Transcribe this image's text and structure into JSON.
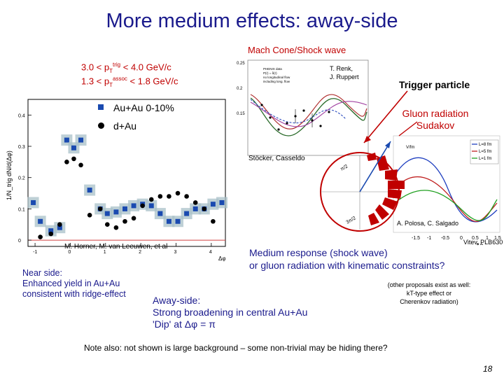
{
  "slide": {
    "title": "More medium effects: away-side",
    "page_number": "18"
  },
  "mach_cone": {
    "label": "Mach Cone/Shock wave",
    "authors": "T. Renk, J. Ruppert",
    "authors_line1": "T. Renk,",
    "authors_line2": "J. Ruppert",
    "legend": [
      "PHENIX data",
      "P(r) = δ(r)",
      "no longitudinal flow",
      "including long. flow"
    ],
    "y_ticks": [
      "0.25",
      "0.2",
      "0.15"
    ]
  },
  "kinematics": {
    "trig_line": "3.0 < pT trig < 4.0 GeV/c",
    "assoc_line": "1.3 < pT assoc < 1.8 GeV/c",
    "trig_pre": "3.0 < p",
    "trig_sub": "T",
    "trig_sup": "trig",
    "trig_post": " < 4.0 GeV/c",
    "assoc_pre": "1.3 < p",
    "assoc_sub": "T",
    "assoc_sup": "assoc",
    "assoc_post": " < 1.8 GeV/c"
  },
  "legend": {
    "auau": "Au+Au 0-10%",
    "dau": "d+Au"
  },
  "main_plot_credit": "M. Horner, M. van Leeuwen, et al",
  "ylabel_main": "1/N_trig dN/d(Δφ)",
  "trigger_label": "Trigger particle",
  "gluon_label_line1": "Gluon radiation",
  "gluon_label_line2": "Sudakov",
  "stocker_credit": "Stöcker, Casseldo",
  "vitev": {
    "credit": "Vitev, PLB630",
    "legend": [
      "L=8 fm",
      "L=5 fm",
      "L=1 fm"
    ],
    "unit": "V/fm",
    "xlabel": "Δφ"
  },
  "polosa_credit": "A. Polosa, C. Salgado",
  "polar_labels": [
    "π/2",
    "3π/2"
  ],
  "medium_response": {
    "line1": "Medium response (shock wave)",
    "line2": "or gluon radiation with kinematic constraints?"
  },
  "other_processes": {
    "line1": "(other proposals exist as well:",
    "line2": "kT-type effect or",
    "line3": "Cherenkov radiation)"
  },
  "near_side": {
    "line1": "Near side:",
    "line2": "Enhanced yield in Au+Au",
    "line3": "consistent with ridge-effect"
  },
  "away_side": {
    "line1": "Away-side:",
    "line2": "Strong broadening in central Au+Au",
    "line3": "'Dip' at Δφ = π"
  },
  "note": "Note also: not shown is large background – some non-trivial may be hiding there?",
  "chart_data": {
    "type": "scatter",
    "xlabel": "Δφ",
    "ylabel": "1/N_trig dN/d(Δφ)",
    "xlim": [
      -1.2,
      4.4
    ],
    "ylim": [
      -0.02,
      0.45
    ],
    "x_ticks": [
      "-1",
      "0",
      "1",
      "2",
      "3",
      "4"
    ],
    "y_ticks": [
      "0",
      "0.1",
      "0.2",
      "0.3",
      "0.4"
    ],
    "series": [
      {
        "name": "Au+Au 0-10%",
        "x": [
          -1.05,
          -0.85,
          -0.55,
          -0.3,
          -0.1,
          0.1,
          0.3,
          0.55,
          0.85,
          1.05,
          1.3,
          1.55,
          1.8,
          2.05,
          2.3,
          2.55,
          2.8,
          3.05,
          3.3,
          3.55,
          3.8,
          4.05,
          4.3
        ],
        "values": [
          0.12,
          0.06,
          0.03,
          0.04,
          0.32,
          0.295,
          0.32,
          0.16,
          0.1,
          0.085,
          0.09,
          0.1,
          0.11,
          0.115,
          0.11,
          0.085,
          0.06,
          0.06,
          0.085,
          0.1,
          0.1,
          0.115,
          0.12
        ]
      },
      {
        "name": "d+Au",
        "x": [
          -0.85,
          -0.55,
          -0.3,
          -0.1,
          0.1,
          0.3,
          0.55,
          0.85,
          1.05,
          1.3,
          1.55,
          1.8,
          2.05,
          2.3,
          2.55,
          2.8,
          3.05,
          3.3,
          3.55,
          3.8,
          4.05
        ],
        "values": [
          0.01,
          0.02,
          0.05,
          0.25,
          0.26,
          0.24,
          0.08,
          0.1,
          0.05,
          0.04,
          0.06,
          0.07,
          0.11,
          0.13,
          0.14,
          0.14,
          0.15,
          0.14,
          0.12,
          0.1,
          0.06
        ]
      }
    ]
  }
}
